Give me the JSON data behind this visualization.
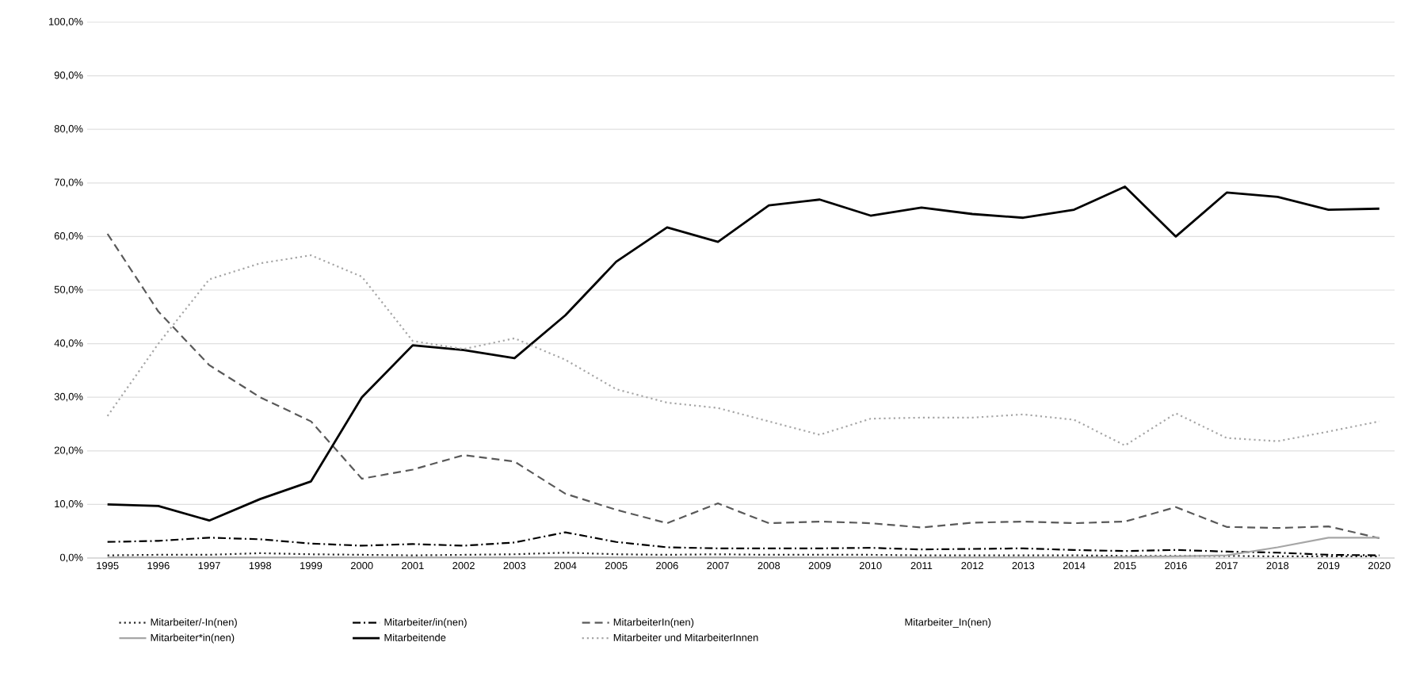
{
  "chart_data": {
    "type": "line",
    "categories": [
      "1995",
      "1996",
      "1997",
      "1998",
      "1999",
      "2000",
      "2001",
      "2002",
      "2003",
      "2004",
      "2005",
      "2006",
      "2007",
      "2008",
      "2009",
      "2010",
      "2011",
      "2012",
      "2013",
      "2014",
      "2015",
      "2016",
      "2017",
      "2018",
      "2019",
      "2020"
    ],
    "series": [
      {
        "name": "Mitarbeiter/-In(nen)",
        "color": "#262626",
        "line_style": "dotted",
        "values": [
          0.5,
          0.6,
          0.6,
          0.9,
          0.7,
          0.6,
          0.5,
          0.6,
          0.7,
          1.0,
          0.7,
          0.6,
          0.7,
          0.6,
          0.6,
          0.6,
          0.5,
          0.5,
          0.5,
          0.5,
          0.4,
          0.4,
          0.4,
          0.3,
          0.3,
          0.3
        ]
      },
      {
        "name": "Mitarbeiter/in(nen)",
        "color": "#000000",
        "line_style": "dashdotted",
        "values": [
          3.0,
          3.2,
          3.8,
          3.5,
          2.7,
          2.3,
          2.6,
          2.3,
          2.9,
          4.8,
          3.0,
          2.0,
          1.8,
          1.8,
          1.8,
          1.9,
          1.6,
          1.7,
          1.8,
          1.5,
          1.3,
          1.5,
          1.2,
          1.0,
          0.6,
          0.5
        ]
      },
      {
        "name": "MitarbeiterIn(nen)",
        "color": "#595959",
        "line_style": "dashed",
        "values": [
          60.5,
          46,
          36,
          30,
          25.5,
          14.8,
          16.5,
          19.2,
          18,
          12,
          9,
          6.5,
          10.2,
          6.5,
          6.8,
          6.5,
          5.7,
          6.6,
          6.8,
          6.5,
          6.8,
          9.5,
          5.8,
          5.6,
          5.9,
          3.7
        ]
      },
      {
        "name": "Mitarbeiter_In(nen)",
        "values": [
          null,
          null,
          null,
          null,
          null,
          null,
          null,
          null,
          null,
          null,
          null,
          null,
          null,
          null,
          null,
          null,
          null,
          null,
          null,
          null,
          null,
          null,
          null,
          null,
          null,
          null
        ]
      },
      {
        "name": "Mitarbeiter*in(nen)",
        "color": "#a6a6a6",
        "line_style": "solid",
        "values": [
          0.1,
          0.1,
          0.1,
          0.1,
          0.1,
          0.1,
          0.1,
          0.1,
          0.1,
          0.1,
          0.1,
          0.1,
          0.1,
          0.1,
          0.1,
          0.1,
          0.1,
          0.1,
          0.1,
          0.1,
          0.2,
          0.3,
          0.5,
          2.0,
          3.8,
          3.8
        ]
      },
      {
        "name": "Mitarbeitende",
        "color": "#000000",
        "line_style": "solid",
        "values": [
          10,
          9.7,
          7,
          11,
          14.3,
          30,
          39.7,
          38.8,
          37.3,
          45.3,
          55.3,
          61.7,
          59,
          65.8,
          66.9,
          63.9,
          65.4,
          64.2,
          63.5,
          65,
          69.3,
          60,
          68.2,
          67.4,
          65,
          65.2
        ]
      },
      {
        "name": "Mitarbeiter und MitarbeiterInnen",
        "color": "#a6a6a6",
        "line_style": "dotted",
        "values": [
          26.5,
          40,
          52,
          55,
          56.5,
          52.5,
          40.5,
          39,
          41,
          37,
          31.5,
          29,
          28,
          25.5,
          23,
          26,
          26.2,
          26.2,
          26.8,
          25.8,
          21,
          27,
          22.4,
          21.8,
          23.6,
          25.5
        ]
      }
    ],
    "ylim": [
      0,
      100
    ],
    "yticks": [
      {
        "value": 0,
        "label": "0,0%"
      },
      {
        "value": 10,
        "label": "10,0%"
      },
      {
        "value": 20,
        "label": "20,0%"
      },
      {
        "value": 30,
        "label": "30,0%"
      },
      {
        "value": 40,
        "label": "40,0%"
      },
      {
        "value": 50,
        "label": "50,0%"
      },
      {
        "value": 60,
        "label": "60,0%"
      },
      {
        "value": 70,
        "label": "70,0%"
      },
      {
        "value": 80,
        "label": "80,0%"
      },
      {
        "value": 90,
        "label": "90,0%"
      },
      {
        "value": 100,
        "label": "100,0%"
      }
    ],
    "grid": "y",
    "legend": "bottom",
    "marker": "none"
  }
}
